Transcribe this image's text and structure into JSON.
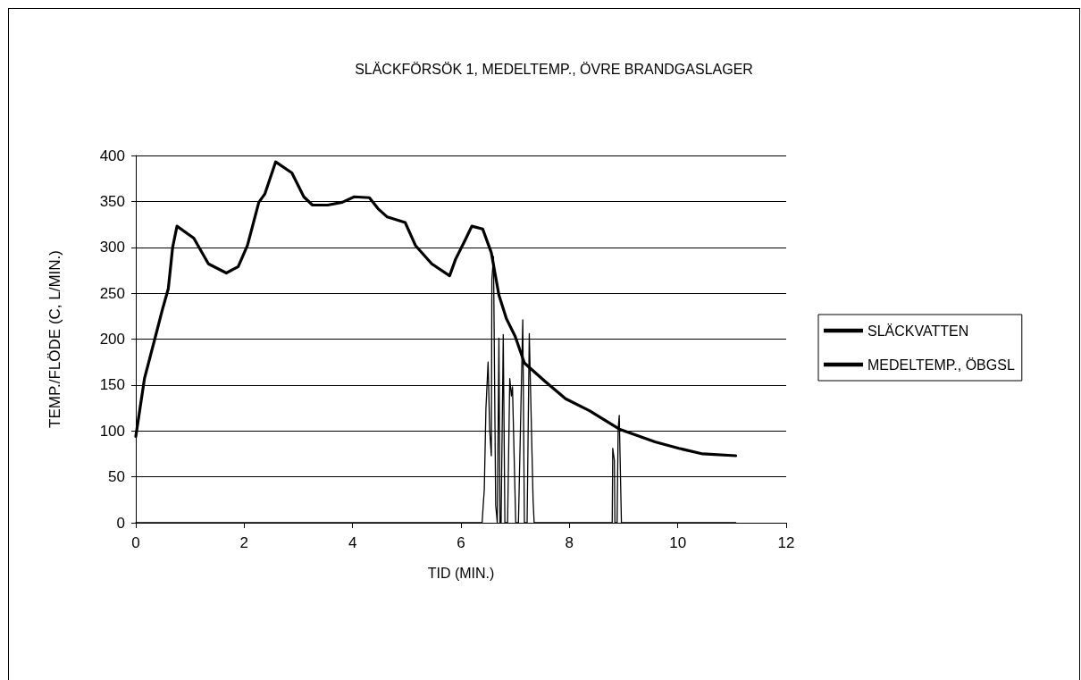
{
  "chart_data": {
    "type": "line",
    "title": "SLÄCKFÖRSÖK 1, MEDELTEMP., ÖVRE BRANDGASLAGER",
    "xlabel": "TID (MIN.)",
    "ylabel": "TEMP./FLÖDE (C, L/MIN.)",
    "xlim": [
      0,
      12
    ],
    "xticks": [
      0,
      2,
      4,
      6,
      8,
      10,
      12
    ],
    "ylim": [
      0,
      400
    ],
    "yticks": [
      0,
      50,
      100,
      150,
      200,
      250,
      300,
      350,
      400
    ],
    "grid": "y",
    "legend": "right",
    "marker": "none",
    "line_style": "solid",
    "series": [
      {
        "name": "SLÄCKVATTEN",
        "color": "#000000",
        "x": [
          0,
          6.39,
          6.41,
          6.43,
          6.46,
          6.5,
          6.53,
          6.56,
          6.57,
          6.6,
          6.64,
          6.67,
          6.7,
          6.72,
          6.74,
          6.78,
          6.81,
          6.86,
          6.9,
          6.93,
          6.95,
          7.01,
          7.06,
          7.14,
          7.17,
          7.22,
          7.26,
          7.33,
          7.35,
          8.79,
          8.8,
          8.83,
          8.84,
          8.88,
          8.9,
          8.92,
          8.96,
          11.07
        ],
        "values": [
          0,
          0,
          19,
          36,
          124,
          175,
          100,
          73,
          265,
          290,
          19,
          0,
          201,
          0,
          0,
          205,
          0,
          0,
          157,
          138,
          148,
          0,
          0,
          221,
          0,
          0,
          206,
          25,
          0,
          0,
          81,
          68,
          0,
          0,
          102,
          117,
          0,
          0
        ]
      },
      {
        "name": "MEDELTEMP., ÖBGSL",
        "color": "#000000",
        "x": [
          0,
          0.16,
          0.35,
          0.49,
          0.6,
          0.68,
          0.76,
          1.07,
          1.34,
          1.67,
          1.89,
          2.06,
          2.27,
          2.38,
          2.58,
          2.88,
          3.1,
          3.26,
          3.54,
          3.81,
          4.03,
          4.31,
          4.47,
          4.64,
          4.97,
          5.16,
          5.46,
          5.79,
          5.9,
          6.07,
          6.2,
          6.4,
          6.56,
          6.7,
          6.84,
          7.0,
          7.17,
          7.55,
          7.93,
          8.37,
          8.92,
          9.58,
          10.02,
          10.46,
          11.07
        ],
        "values": [
          94,
          157,
          200,
          232,
          255,
          300,
          323,
          310,
          282,
          272,
          279,
          302,
          349,
          358,
          393,
          381,
          355,
          346,
          346,
          349,
          355,
          354,
          342,
          333,
          327,
          302,
          282,
          269,
          287,
          307,
          323,
          320,
          294,
          248,
          222,
          203,
          174,
          154,
          135,
          122,
          102,
          88,
          81,
          75,
          73
        ]
      }
    ]
  }
}
